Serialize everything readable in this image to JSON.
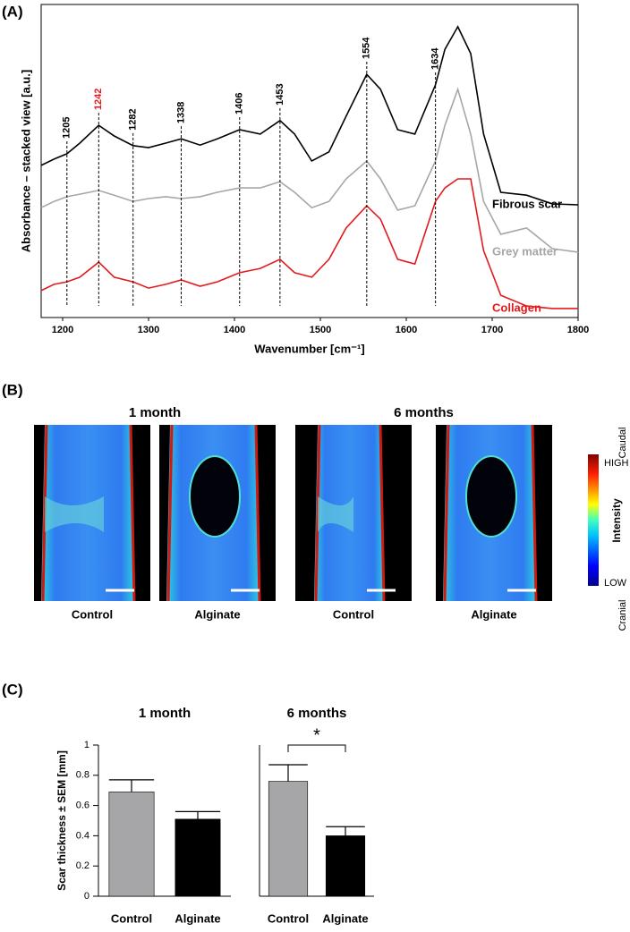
{
  "panel_labels": [
    "(A)",
    "(B)",
    "(C)"
  ],
  "chart_data": [
    {
      "type": "line",
      "xlabel": "Wavenumber [cm⁻¹]",
      "ylabel": "Absorbance – stacked view [a.u.]",
      "xlim": [
        1175,
        1800
      ],
      "xticks": [
        1200,
        1300,
        1400,
        1500,
        1600,
        1700,
        1800
      ],
      "ylim": [
        0,
        10
      ],
      "x": [
        1175,
        1190,
        1205,
        1220,
        1242,
        1260,
        1282,
        1300,
        1320,
        1338,
        1360,
        1380,
        1406,
        1430,
        1453,
        1470,
        1490,
        1510,
        1530,
        1554,
        1570,
        1590,
        1610,
        1634,
        1645,
        1660,
        1675,
        1690,
        1710,
        1740,
        1770,
        1800
      ],
      "series": [
        {
          "name": "Fibrous scar",
          "color": "#000000",
          "values": [
            4.86,
            5.06,
            5.23,
            5.57,
            6.14,
            5.8,
            5.49,
            5.43,
            5.57,
            5.71,
            5.51,
            5.71,
            6.0,
            5.86,
            6.29,
            5.86,
            5.0,
            5.29,
            6.43,
            7.77,
            7.29,
            6.0,
            5.86,
            7.43,
            8.57,
            9.29,
            8.43,
            5.86,
            4.0,
            3.91,
            3.63,
            3.6
          ]
        },
        {
          "name": "Grey matter",
          "color": "#a6a6a6",
          "values": [
            3.51,
            3.71,
            3.86,
            3.94,
            4.06,
            3.91,
            3.71,
            3.8,
            3.86,
            3.8,
            3.86,
            4.0,
            4.14,
            4.14,
            4.34,
            4.0,
            3.51,
            3.71,
            4.43,
            5.0,
            4.43,
            3.43,
            3.57,
            5.0,
            6.14,
            7.29,
            5.86,
            3.71,
            2.66,
            2.86,
            2.2,
            2.09
          ]
        },
        {
          "name": "Collagen",
          "color": "#e31a1c",
          "values": [
            0.86,
            1.06,
            1.14,
            1.29,
            1.77,
            1.29,
            1.14,
            0.94,
            1.06,
            1.2,
            1.0,
            1.14,
            1.43,
            1.57,
            1.86,
            1.43,
            1.29,
            1.86,
            2.86,
            3.57,
            3.14,
            1.86,
            1.71,
            3.71,
            4.14,
            4.43,
            4.43,
            2.14,
            0.71,
            0.37,
            0.29,
            0.29
          ]
        }
      ],
      "peaks": [
        1205,
        1242,
        1282,
        1338,
        1406,
        1453,
        1554,
        1634
      ],
      "peak_colors": [
        "#000000",
        "#e31a1c",
        "#000000",
        "#000000",
        "#000000",
        "#000000",
        "#000000",
        "#000000"
      ]
    },
    {
      "type": "bar",
      "ylabel": "Scar thickness ± SEM  [mm]",
      "ylim": [
        0,
        1
      ],
      "yticks": [
        0,
        0.2,
        0.4,
        0.6,
        0.8,
        1
      ],
      "colors": [
        "#a6a6a8",
        "#000000"
      ],
      "groups": [
        {
          "title": "1 month",
          "categories": [
            "Control",
            "Alginate"
          ],
          "values": [
            0.69,
            0.51
          ],
          "errors": [
            0.08,
            0.05
          ]
        },
        {
          "title": "6 months",
          "categories": [
            "Control",
            "Alginate"
          ],
          "values": [
            0.76,
            0.4
          ],
          "errors": [
            0.11,
            0.06
          ],
          "significance": "*"
        }
      ]
    }
  ],
  "panel_b": {
    "groups": [
      "1 month",
      "6 months"
    ],
    "images": [
      "Control",
      "Alginate",
      "Control",
      "Alginate"
    ],
    "colorbar": {
      "high": "HIGH",
      "low": "LOW",
      "label": "Intensity"
    },
    "orientation": [
      "Caudal",
      "Cranial"
    ]
  }
}
